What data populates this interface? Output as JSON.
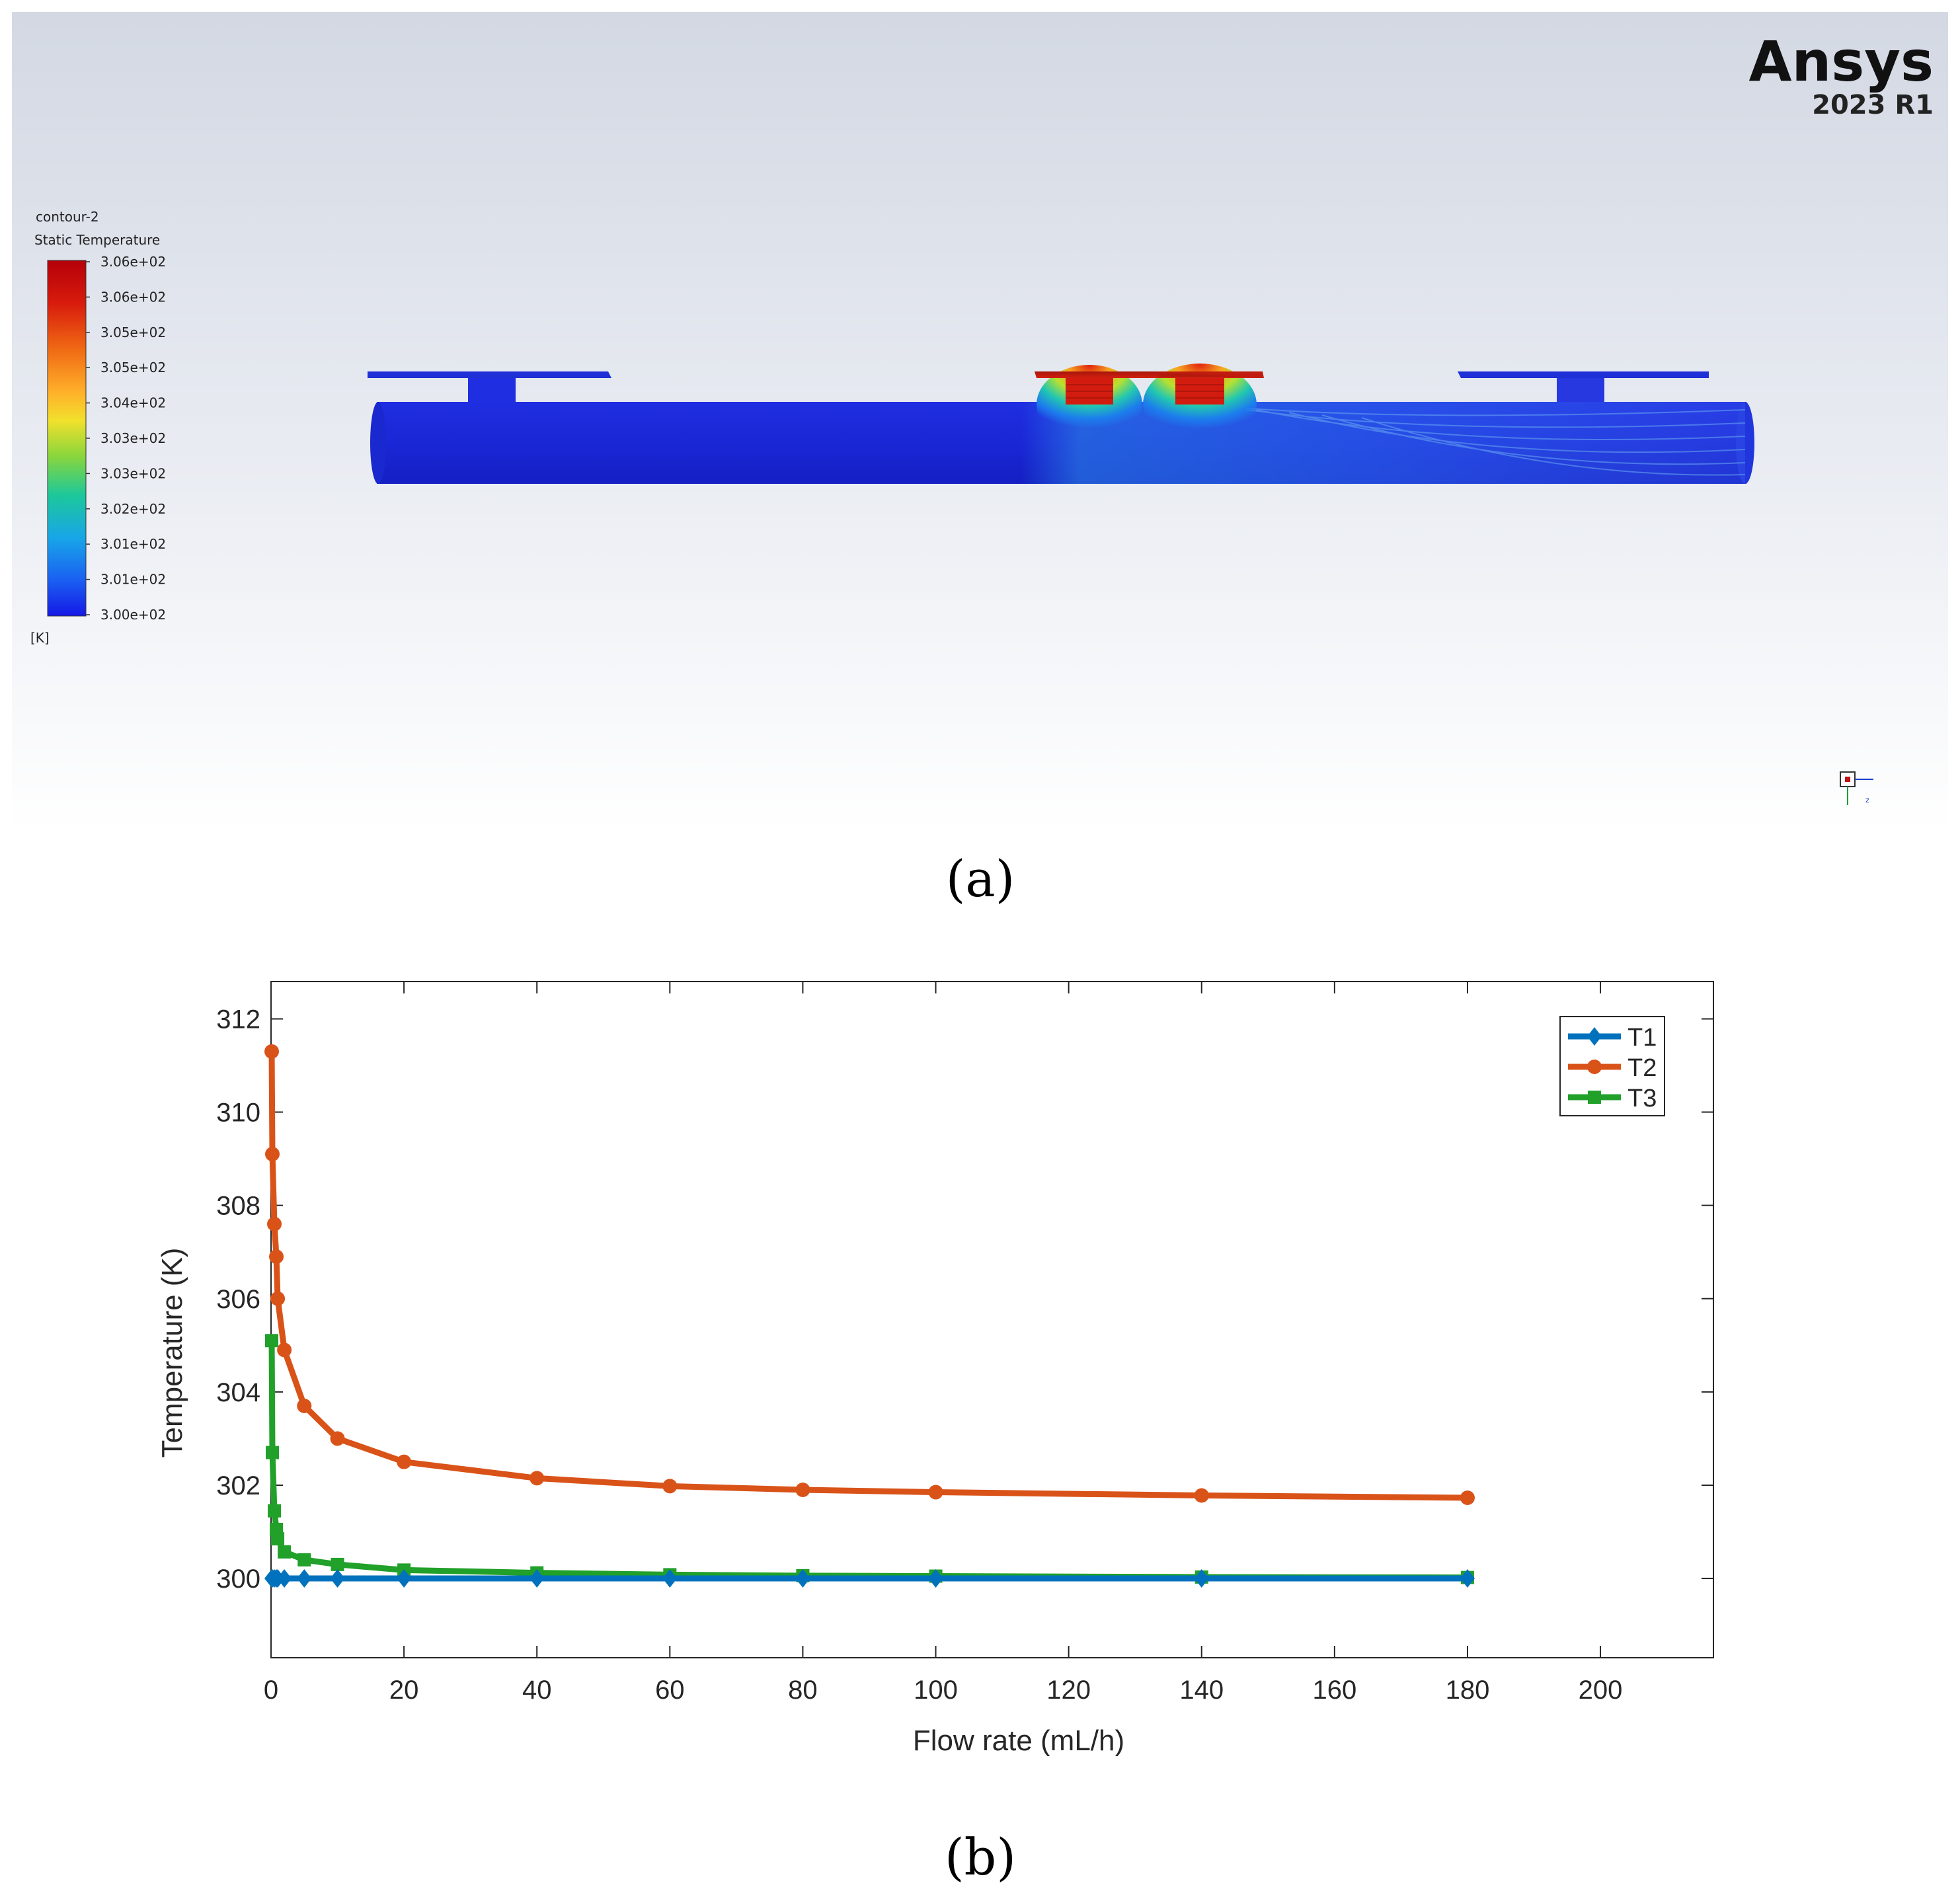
{
  "panel_a": {
    "label": "(a)",
    "brand": "Ansys",
    "version": "2023 R1",
    "legend": {
      "title": "contour-2",
      "variable": "Static Temperature",
      "unit": "[K]",
      "tick_labels": [
        "3.06e+02",
        "3.06e+02",
        "3.05e+02",
        "3.05e+02",
        "3.04e+02",
        "3.03e+02",
        "3.03e+02",
        "3.02e+02",
        "3.01e+02",
        "3.01e+02",
        "3.00e+02"
      ],
      "colors": [
        "#b4000a",
        "#d11b0c",
        "#e8500f",
        "#f58a1d",
        "#ffc82b",
        "#c9e52c",
        "#5ed84b",
        "#18c7a0",
        "#14a6e6",
        "#1a5ff2",
        "#1518e6"
      ]
    },
    "geometry_colors": {
      "cold": "#1d2ed8",
      "hot": "#c3180d",
      "warm_mid": "#2f9be8"
    }
  },
  "panel_b": {
    "label": "(b)"
  },
  "chart_data": {
    "type": "line",
    "xlabel": "Flow rate (mL/h)",
    "ylabel": "Temperature (K)",
    "xlim": [
      0,
      217
    ],
    "ylim": [
      298.3,
      312.8
    ],
    "xticks": [
      0,
      20,
      40,
      60,
      80,
      100,
      120,
      140,
      160,
      180,
      200
    ],
    "yticks": [
      300,
      302,
      304,
      306,
      308,
      310,
      312
    ],
    "grid": false,
    "legend_position": "top-right",
    "series": [
      {
        "name": "T1",
        "color": "#0072bd",
        "marker": "diamond",
        "x": [
          0.1,
          0.2,
          0.5,
          0.8,
          1,
          2,
          5,
          10,
          20,
          40,
          60,
          80,
          100,
          140,
          180
        ],
        "y": [
          300.0,
          300.0,
          300.0,
          300.0,
          300.0,
          300.0,
          300.0,
          300.0,
          300.0,
          300.0,
          300.0,
          300.0,
          300.0,
          300.0,
          300.0
        ]
      },
      {
        "name": "T2",
        "color": "#d95319",
        "marker": "circle",
        "x": [
          0.1,
          0.2,
          0.5,
          0.8,
          1,
          2,
          5,
          10,
          20,
          40,
          60,
          80,
          100,
          140,
          180
        ],
        "y": [
          311.3,
          309.1,
          307.6,
          306.9,
          306.0,
          304.9,
          303.7,
          303.0,
          302.5,
          302.15,
          301.98,
          301.9,
          301.85,
          301.78,
          301.73
        ]
      },
      {
        "name": "T3",
        "color": "#21a02a",
        "marker": "square",
        "x": [
          0.1,
          0.2,
          0.5,
          0.8,
          1,
          2,
          5,
          10,
          20,
          40,
          60,
          80,
          100,
          140,
          180
        ],
        "y": [
          305.1,
          302.7,
          301.45,
          301.05,
          300.85,
          300.57,
          300.4,
          300.3,
          300.18,
          300.12,
          300.08,
          300.06,
          300.05,
          300.03,
          300.02
        ]
      }
    ]
  }
}
